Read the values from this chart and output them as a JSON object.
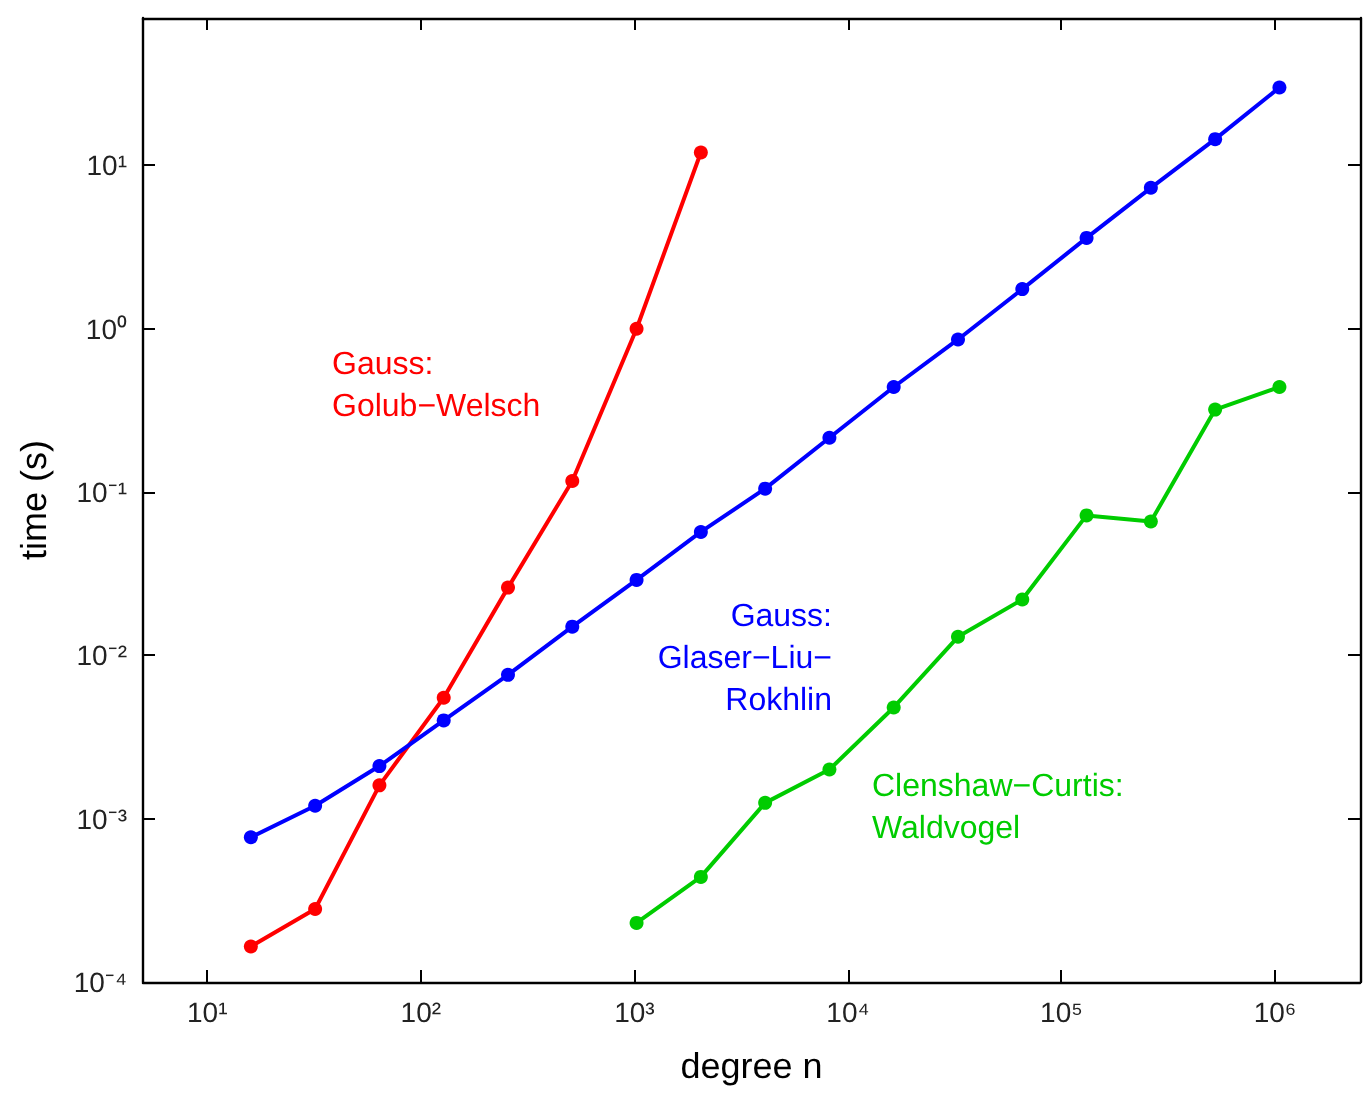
{
  "chart_data": {
    "type": "line",
    "xlabel": "degree n",
    "ylabel": "time (s)",
    "log": "xy",
    "grid": false,
    "legend": false,
    "marker": "circle",
    "line_style": "solid",
    "xlim": [
      5,
      2500000
    ],
    "ylim": [
      0.0001,
      80
    ],
    "xticks": [
      {
        "value": 10,
        "label": "10¹"
      },
      {
        "value": 100,
        "label": "10²"
      },
      {
        "value": 1000,
        "label": "10³"
      },
      {
        "value": 10000,
        "label": "10⁴"
      },
      {
        "value": 100000,
        "label": "10⁵"
      },
      {
        "value": 1000000,
        "label": "10⁶"
      }
    ],
    "yticks": [
      {
        "value": 0.0001,
        "label": "10⁻⁴"
      },
      {
        "value": 0.001,
        "label": "10⁻³"
      },
      {
        "value": 0.01,
        "label": "10⁻²"
      },
      {
        "value": 0.1,
        "label": "10⁻¹"
      },
      {
        "value": 1,
        "label": "10⁰"
      },
      {
        "value": 10,
        "label": "10¹"
      }
    ],
    "series": [
      {
        "name": "Gauss:\nGolub−Welsch",
        "color": "#ff0000",
        "x": [
          16,
          32,
          64,
          128,
          256,
          512,
          1024,
          2048
        ],
        "values": [
          0.000165,
          0.00028,
          0.0016,
          0.0055,
          0.026,
          0.117,
          1.0,
          12
        ]
      },
      {
        "name": "Gauss:\nGlaser−Liu−\nRokhlin",
        "color": "#0000ff",
        "x": [
          16,
          32,
          64,
          128,
          256,
          512,
          1024,
          2048,
          4096,
          8192,
          16384,
          32768,
          65536,
          131072,
          262144,
          524288,
          1048576
        ],
        "values": [
          0.00077,
          0.0012,
          0.0021,
          0.004,
          0.0076,
          0.015,
          0.029,
          0.057,
          0.105,
          0.215,
          0.44,
          0.86,
          1.75,
          3.6,
          7.3,
          14.5,
          30
        ]
      },
      {
        "name": "Clenshaw−Curtis:\nWaldvogel",
        "color": "#00cc00",
        "x": [
          1024,
          2048,
          4096,
          8192,
          16384,
          32768,
          65536,
          131072,
          262144,
          524288,
          1048576
        ],
        "values": [
          0.00023,
          0.00044,
          0.00125,
          0.002,
          0.0048,
          0.013,
          0.022,
          0.072,
          0.066,
          0.32,
          0.44
        ]
      }
    ]
  }
}
